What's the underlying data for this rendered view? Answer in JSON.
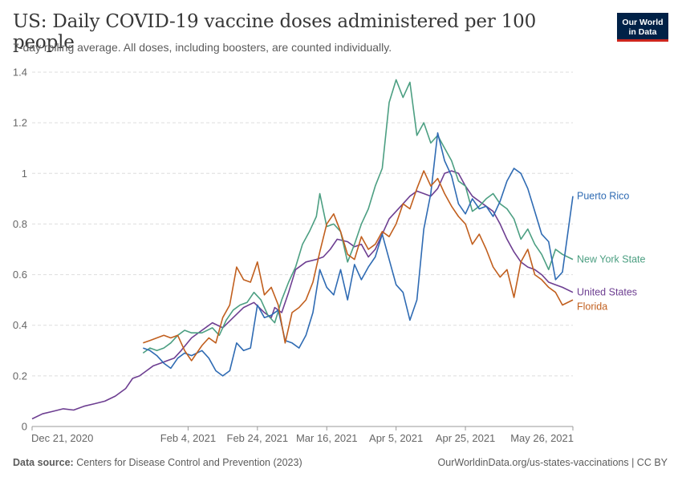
{
  "header": {
    "title": "US: Daily COVID-19 vaccine doses administered per 100 people",
    "subtitle": "7-day rolling average. All doses, including boosters, are counted individually."
  },
  "logo": {
    "line1": "Our World",
    "line2": "in Data"
  },
  "footer": {
    "source_label": "Data source:",
    "source_text": "Centers for Disease Control and Prevention (2023)",
    "right_text": "OurWorldinData.org/us-states-vaccinations | CC BY"
  },
  "chart_data": {
    "type": "line",
    "x_start": "2020-12-21",
    "x_end": "2021-05-26",
    "xlim": [
      "2020-12-21",
      "2021-05-26"
    ],
    "ylim": [
      0,
      1.4
    ],
    "yticks": [
      0,
      0.2,
      0.4,
      0.6,
      0.8,
      1,
      1.2,
      1.4
    ],
    "ytick_labels": [
      "0",
      "0.2",
      "0.4",
      "0.6",
      "0.8",
      "1",
      "1.2",
      "1.4"
    ],
    "xticks": [
      "2020-12-21",
      "2021-02-04",
      "2021-02-24",
      "2021-03-16",
      "2021-04-05",
      "2021-04-25",
      "2021-05-26"
    ],
    "xtick_labels": [
      "Dec 21, 2020",
      "Feb 4, 2021",
      "Feb 24, 2021",
      "Mar 16, 2021",
      "Apr 5, 2021",
      "Apr 25, 2021",
      "May 26, 2021"
    ],
    "grid": "horizontal dashed",
    "legend": "labels at line ends",
    "series": [
      {
        "name": "United States",
        "color": "#6d3e91",
        "points": [
          [
            "2020-12-21",
            0.03
          ],
          [
            "2020-12-24",
            0.05
          ],
          [
            "2020-12-27",
            0.06
          ],
          [
            "2020-12-30",
            0.07
          ],
          [
            "2021-01-02",
            0.065
          ],
          [
            "2021-01-05",
            0.08
          ],
          [
            "2021-01-08",
            0.09
          ],
          [
            "2021-01-11",
            0.1
          ],
          [
            "2021-01-14",
            0.12
          ],
          [
            "2021-01-17",
            0.15
          ],
          [
            "2021-01-19",
            0.19
          ],
          [
            "2021-01-21",
            0.2
          ],
          [
            "2021-01-23",
            0.22
          ],
          [
            "2021-01-25",
            0.24
          ],
          [
            "2021-01-27",
            0.25
          ],
          [
            "2021-01-29",
            0.26
          ],
          [
            "2021-01-31",
            0.27
          ],
          [
            "2021-02-02",
            0.3
          ],
          [
            "2021-02-05",
            0.35
          ],
          [
            "2021-02-08",
            0.38
          ],
          [
            "2021-02-11",
            0.41
          ],
          [
            "2021-02-14",
            0.39
          ],
          [
            "2021-02-17",
            0.43
          ],
          [
            "2021-02-20",
            0.47
          ],
          [
            "2021-02-23",
            0.49
          ],
          [
            "2021-02-26",
            0.45
          ],
          [
            "2021-02-28",
            0.43
          ],
          [
            "2021-03-01",
            0.47
          ],
          [
            "2021-03-03",
            0.45
          ],
          [
            "2021-03-05",
            0.53
          ],
          [
            "2021-03-07",
            0.62
          ],
          [
            "2021-03-10",
            0.65
          ],
          [
            "2021-03-13",
            0.66
          ],
          [
            "2021-03-15",
            0.67
          ],
          [
            "2021-03-17",
            0.7
          ],
          [
            "2021-03-19",
            0.74
          ],
          [
            "2021-03-22",
            0.73
          ],
          [
            "2021-03-24",
            0.71
          ],
          [
            "2021-03-26",
            0.72
          ],
          [
            "2021-03-28",
            0.67
          ],
          [
            "2021-03-30",
            0.7
          ],
          [
            "2021-04-01",
            0.76
          ],
          [
            "2021-04-03",
            0.82
          ],
          [
            "2021-04-05",
            0.85
          ],
          [
            "2021-04-07",
            0.88
          ],
          [
            "2021-04-09",
            0.91
          ],
          [
            "2021-04-11",
            0.93
          ],
          [
            "2021-04-13",
            0.92
          ],
          [
            "2021-04-15",
            0.91
          ],
          [
            "2021-04-17",
            0.94
          ],
          [
            "2021-04-19",
            1.0
          ],
          [
            "2021-04-21",
            1.01
          ],
          [
            "2021-04-23",
            1.0
          ],
          [
            "2021-04-25",
            0.95
          ],
          [
            "2021-04-27",
            0.91
          ],
          [
            "2021-04-29",
            0.89
          ],
          [
            "2021-05-01",
            0.87
          ],
          [
            "2021-05-03",
            0.85
          ],
          [
            "2021-05-05",
            0.8
          ],
          [
            "2021-05-07",
            0.74
          ],
          [
            "2021-05-09",
            0.69
          ],
          [
            "2021-05-11",
            0.65
          ],
          [
            "2021-05-13",
            0.63
          ],
          [
            "2021-05-15",
            0.62
          ],
          [
            "2021-05-17",
            0.6
          ],
          [
            "2021-05-19",
            0.57
          ],
          [
            "2021-05-21",
            0.56
          ],
          [
            "2021-05-23",
            0.55
          ],
          [
            "2021-05-26",
            0.53
          ]
        ]
      },
      {
        "name": "New York State",
        "color": "#4c9f82",
        "points": [
          [
            "2021-01-22",
            0.29
          ],
          [
            "2021-01-24",
            0.31
          ],
          [
            "2021-01-26",
            0.3
          ],
          [
            "2021-01-28",
            0.31
          ],
          [
            "2021-01-30",
            0.33
          ],
          [
            "2021-02-01",
            0.36
          ],
          [
            "2021-02-03",
            0.38
          ],
          [
            "2021-02-05",
            0.37
          ],
          [
            "2021-02-08",
            0.37
          ],
          [
            "2021-02-11",
            0.39
          ],
          [
            "2021-02-13",
            0.36
          ],
          [
            "2021-02-15",
            0.42
          ],
          [
            "2021-02-17",
            0.46
          ],
          [
            "2021-02-19",
            0.48
          ],
          [
            "2021-02-21",
            0.49
          ],
          [
            "2021-02-23",
            0.53
          ],
          [
            "2021-02-25",
            0.5
          ],
          [
            "2021-02-27",
            0.44
          ],
          [
            "2021-03-01",
            0.41
          ],
          [
            "2021-03-03",
            0.5
          ],
          [
            "2021-03-05",
            0.57
          ],
          [
            "2021-03-07",
            0.63
          ],
          [
            "2021-03-09",
            0.72
          ],
          [
            "2021-03-11",
            0.77
          ],
          [
            "2021-03-13",
            0.83
          ],
          [
            "2021-03-14",
            0.92
          ],
          [
            "2021-03-16",
            0.79
          ],
          [
            "2021-03-18",
            0.8
          ],
          [
            "2021-03-20",
            0.77
          ],
          [
            "2021-03-22",
            0.65
          ],
          [
            "2021-03-24",
            0.72
          ],
          [
            "2021-03-26",
            0.8
          ],
          [
            "2021-03-28",
            0.86
          ],
          [
            "2021-03-30",
            0.95
          ],
          [
            "2021-04-01",
            1.02
          ],
          [
            "2021-04-03",
            1.28
          ],
          [
            "2021-04-05",
            1.37
          ],
          [
            "2021-04-07",
            1.3
          ],
          [
            "2021-04-09",
            1.36
          ],
          [
            "2021-04-11",
            1.15
          ],
          [
            "2021-04-13",
            1.2
          ],
          [
            "2021-04-15",
            1.12
          ],
          [
            "2021-04-17",
            1.15
          ],
          [
            "2021-04-19",
            1.1
          ],
          [
            "2021-04-21",
            1.05
          ],
          [
            "2021-04-23",
            0.97
          ],
          [
            "2021-04-25",
            0.95
          ],
          [
            "2021-04-27",
            0.85
          ],
          [
            "2021-04-29",
            0.87
          ],
          [
            "2021-05-01",
            0.9
          ],
          [
            "2021-05-03",
            0.92
          ],
          [
            "2021-05-05",
            0.88
          ],
          [
            "2021-05-07",
            0.86
          ],
          [
            "2021-05-09",
            0.82
          ],
          [
            "2021-05-11",
            0.74
          ],
          [
            "2021-05-13",
            0.78
          ],
          [
            "2021-05-15",
            0.72
          ],
          [
            "2021-05-17",
            0.68
          ],
          [
            "2021-05-19",
            0.62
          ],
          [
            "2021-05-21",
            0.7
          ],
          [
            "2021-05-23",
            0.68
          ],
          [
            "2021-05-26",
            0.66
          ]
        ]
      },
      {
        "name": "Puerto Rico",
        "color": "#2f6bb3",
        "points": [
          [
            "2021-01-22",
            0.31
          ],
          [
            "2021-01-24",
            0.3
          ],
          [
            "2021-01-26",
            0.28
          ],
          [
            "2021-01-28",
            0.25
          ],
          [
            "2021-01-30",
            0.23
          ],
          [
            "2021-02-01",
            0.27
          ],
          [
            "2021-02-03",
            0.29
          ],
          [
            "2021-02-05",
            0.28
          ],
          [
            "2021-02-08",
            0.3
          ],
          [
            "2021-02-10",
            0.27
          ],
          [
            "2021-02-12",
            0.22
          ],
          [
            "2021-02-14",
            0.2
          ],
          [
            "2021-02-16",
            0.22
          ],
          [
            "2021-02-18",
            0.33
          ],
          [
            "2021-02-20",
            0.3
          ],
          [
            "2021-02-22",
            0.31
          ],
          [
            "2021-02-24",
            0.48
          ],
          [
            "2021-02-26",
            0.43
          ],
          [
            "2021-02-28",
            0.44
          ],
          [
            "2021-03-02",
            0.46
          ],
          [
            "2021-03-04",
            0.34
          ],
          [
            "2021-03-06",
            0.33
          ],
          [
            "2021-03-08",
            0.31
          ],
          [
            "2021-03-10",
            0.36
          ],
          [
            "2021-03-12",
            0.45
          ],
          [
            "2021-03-14",
            0.62
          ],
          [
            "2021-03-16",
            0.55
          ],
          [
            "2021-03-18",
            0.52
          ],
          [
            "2021-03-20",
            0.62
          ],
          [
            "2021-03-22",
            0.5
          ],
          [
            "2021-03-24",
            0.64
          ],
          [
            "2021-03-26",
            0.58
          ],
          [
            "2021-03-28",
            0.63
          ],
          [
            "2021-03-30",
            0.67
          ],
          [
            "2021-04-01",
            0.76
          ],
          [
            "2021-04-03",
            0.66
          ],
          [
            "2021-04-05",
            0.56
          ],
          [
            "2021-04-07",
            0.53
          ],
          [
            "2021-04-09",
            0.42
          ],
          [
            "2021-04-11",
            0.5
          ],
          [
            "2021-04-13",
            0.78
          ],
          [
            "2021-04-15",
            0.92
          ],
          [
            "2021-04-17",
            1.16
          ],
          [
            "2021-04-19",
            1.05
          ],
          [
            "2021-04-21",
            0.99
          ],
          [
            "2021-04-23",
            0.88
          ],
          [
            "2021-04-25",
            0.84
          ],
          [
            "2021-04-27",
            0.9
          ],
          [
            "2021-04-29",
            0.86
          ],
          [
            "2021-05-01",
            0.87
          ],
          [
            "2021-05-03",
            0.83
          ],
          [
            "2021-05-05",
            0.89
          ],
          [
            "2021-05-07",
            0.97
          ],
          [
            "2021-05-09",
            1.02
          ],
          [
            "2021-05-11",
            1.0
          ],
          [
            "2021-05-13",
            0.94
          ],
          [
            "2021-05-15",
            0.85
          ],
          [
            "2021-05-17",
            0.76
          ],
          [
            "2021-05-19",
            0.73
          ],
          [
            "2021-05-21",
            0.58
          ],
          [
            "2021-05-23",
            0.61
          ],
          [
            "2021-05-26",
            0.91
          ]
        ]
      },
      {
        "name": "Florida",
        "color": "#c15f1e",
        "points": [
          [
            "2021-01-22",
            0.33
          ],
          [
            "2021-01-24",
            0.34
          ],
          [
            "2021-01-26",
            0.35
          ],
          [
            "2021-01-28",
            0.36
          ],
          [
            "2021-01-30",
            0.35
          ],
          [
            "2021-02-01",
            0.36
          ],
          [
            "2021-02-03",
            0.3
          ],
          [
            "2021-02-05",
            0.26
          ],
          [
            "2021-02-08",
            0.32
          ],
          [
            "2021-02-10",
            0.35
          ],
          [
            "2021-02-12",
            0.33
          ],
          [
            "2021-02-14",
            0.43
          ],
          [
            "2021-02-16",
            0.48
          ],
          [
            "2021-02-18",
            0.63
          ],
          [
            "2021-02-20",
            0.58
          ],
          [
            "2021-02-22",
            0.57
          ],
          [
            "2021-02-24",
            0.65
          ],
          [
            "2021-02-26",
            0.52
          ],
          [
            "2021-02-28",
            0.55
          ],
          [
            "2021-03-02",
            0.48
          ],
          [
            "2021-03-04",
            0.33
          ],
          [
            "2021-03-06",
            0.45
          ],
          [
            "2021-03-08",
            0.47
          ],
          [
            "2021-03-10",
            0.5
          ],
          [
            "2021-03-12",
            0.57
          ],
          [
            "2021-03-14",
            0.69
          ],
          [
            "2021-03-16",
            0.8
          ],
          [
            "2021-03-18",
            0.84
          ],
          [
            "2021-03-20",
            0.77
          ],
          [
            "2021-03-22",
            0.68
          ],
          [
            "2021-03-24",
            0.66
          ],
          [
            "2021-03-26",
            0.75
          ],
          [
            "2021-03-28",
            0.7
          ],
          [
            "2021-03-30",
            0.72
          ],
          [
            "2021-04-01",
            0.77
          ],
          [
            "2021-04-03",
            0.75
          ],
          [
            "2021-04-05",
            0.8
          ],
          [
            "2021-04-07",
            0.88
          ],
          [
            "2021-04-09",
            0.86
          ],
          [
            "2021-04-11",
            0.94
          ],
          [
            "2021-04-13",
            1.01
          ],
          [
            "2021-04-15",
            0.95
          ],
          [
            "2021-04-17",
            0.98
          ],
          [
            "2021-04-19",
            0.92
          ],
          [
            "2021-04-21",
            0.87
          ],
          [
            "2021-04-23",
            0.83
          ],
          [
            "2021-04-25",
            0.8
          ],
          [
            "2021-04-27",
            0.72
          ],
          [
            "2021-04-29",
            0.76
          ],
          [
            "2021-05-01",
            0.7
          ],
          [
            "2021-05-03",
            0.63
          ],
          [
            "2021-05-05",
            0.59
          ],
          [
            "2021-05-07",
            0.62
          ],
          [
            "2021-05-09",
            0.51
          ],
          [
            "2021-05-11",
            0.65
          ],
          [
            "2021-05-13",
            0.7
          ],
          [
            "2021-05-15",
            0.6
          ],
          [
            "2021-05-17",
            0.58
          ],
          [
            "2021-05-19",
            0.55
          ],
          [
            "2021-05-21",
            0.53
          ],
          [
            "2021-05-23",
            0.48
          ],
          [
            "2021-05-26",
            0.5
          ]
        ]
      }
    ]
  }
}
